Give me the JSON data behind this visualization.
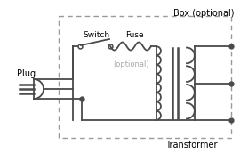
{
  "title": "Box (optional)",
  "transformer_label": "Transformer",
  "plug_label": "Plug",
  "switch_label": "Switch",
  "fuse_label": "Fuse",
  "optional_label": "(optional)",
  "bg_color": "#ffffff",
  "line_color": "#4a4a4a",
  "optional_color": "#aaaaaa",
  "figsize": [
    2.79,
    1.81
  ],
  "dpi": 100
}
